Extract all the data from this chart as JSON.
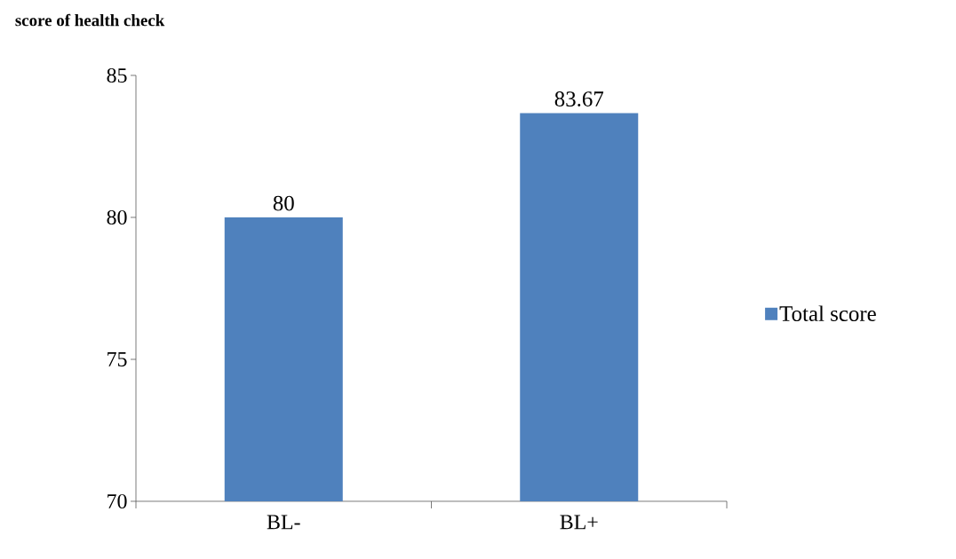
{
  "chart_data": {
    "type": "bar",
    "ylabel": "score of health check",
    "categories": [
      "BL-",
      "BL+"
    ],
    "series": [
      {
        "name": "Total score",
        "color": "#4f81bd",
        "values": [
          80,
          83.67
        ]
      }
    ],
    "ylim": [
      70,
      85
    ],
    "yticks": [
      70,
      75,
      80,
      85
    ],
    "data_labels": true,
    "legend": "right",
    "grid": false
  }
}
